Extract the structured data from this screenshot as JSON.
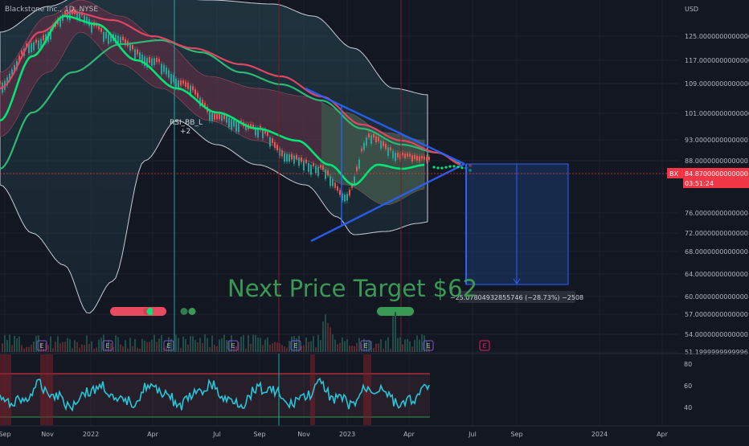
{
  "header": {
    "symbol": "Blackstone Inc., 1D, NYSE",
    "currency": "USD"
  },
  "price_axis": {
    "labels": [
      "125.0000000000000",
      "117.0000000000000",
      "109.0000000000000",
      "101.0000000000000",
      "93.0000000000000",
      "88.0000000000000",
      "76.0000000000000",
      "72.0000000000000",
      "68.0000000000000",
      "64.0000000000000",
      "60.0000000000000",
      "57.0000000000000",
      "54.0000000000000",
      "51.1999999999996"
    ],
    "last_price": {
      "ticker": "BX",
      "value": "84.8700000000000",
      "countdown": "03:51:24",
      "color": "#f23645"
    }
  },
  "time_axis": {
    "labels": [
      "Sep",
      "Nov",
      "2022",
      "Apr",
      "Jul",
      "Sep",
      "Nov",
      "2023",
      "Apr",
      "Jul",
      "Sep",
      "2024",
      "Apr"
    ]
  },
  "indicator": {
    "label": "RSI_BB_L",
    "value": "+2",
    "levels": [
      "80",
      "60",
      "40"
    ]
  },
  "annotation": {
    "target_text": "Next Price Target $62"
  },
  "measure": {
    "label": "−25.0780493285574​6 (−28.73%) −2508",
    "color": "#2962ff"
  },
  "events": {
    "earnings_marker": "E"
  },
  "colors": {
    "bg": "#131722",
    "bull": "#00e676",
    "bear": "#f23645",
    "band": "#b2b5be"
  },
  "chart_data": {
    "type": "line",
    "symbol": "BX",
    "x": [
      "2021-09",
      "2021-11",
      "2022-01",
      "2022-04",
      "2022-07",
      "2022-09",
      "2022-11",
      "2023-01",
      "2023-04",
      "2023-05"
    ],
    "series": [
      {
        "values": [
          118,
          132,
          125,
          104,
          92,
          88,
          73,
          82,
          83,
          84.87
        ]
      }
    ],
    "ylim": [
      51.2,
      131
    ],
    "yticks": [
      125,
      117,
      109,
      101,
      93,
      88,
      76,
      72,
      68,
      64,
      60,
      57,
      54,
      51.2
    ],
    "target": 62,
    "last_price": 84.87,
    "oscillator_levels": [
      80,
      60,
      40
    ]
  }
}
